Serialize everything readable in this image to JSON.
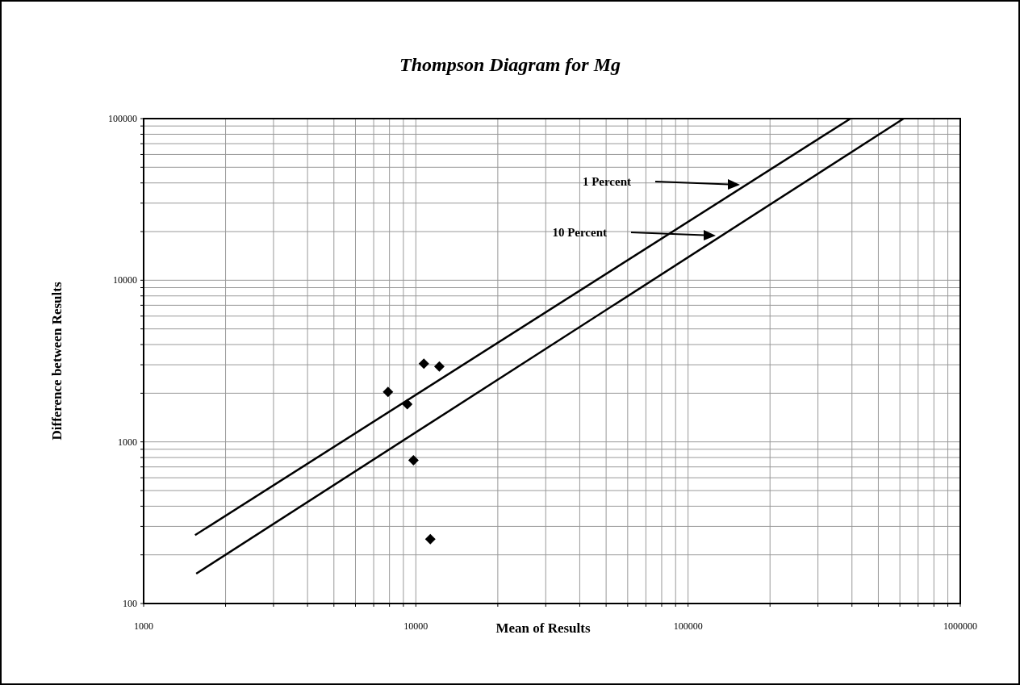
{
  "chart_data": {
    "type": "scatter",
    "title": "Thompson Diagram  for Mg",
    "xlabel": "Mean of  Results",
    "ylabel": "Difference between Results",
    "log": "xy",
    "grid": true,
    "xlim": [
      1000,
      1000000
    ],
    "ylim": [
      100,
      100000
    ],
    "xticks": [
      1000,
      {
        "value": 2000,
        "label": null
      },
      {
        "value": 3000,
        "label": null
      },
      {
        "value": 4000,
        "label": null
      },
      {
        "value": 5000,
        "label": null
      },
      {
        "value": 6000,
        "label": null
      },
      {
        "value": 7000,
        "label": null
      },
      {
        "value": 8000,
        "label": null
      },
      {
        "value": 9000,
        "label": null
      },
      10000,
      {
        "value": 20000,
        "label": null
      },
      {
        "value": 30000,
        "label": null
      },
      {
        "value": 40000,
        "label": null
      },
      {
        "value": 50000,
        "label": null
      },
      {
        "value": 60000,
        "label": null
      },
      {
        "value": 70000,
        "label": null
      },
      {
        "value": 80000,
        "label": null
      },
      {
        "value": 90000,
        "label": null
      },
      100000,
      {
        "value": 200000,
        "label": null
      },
      {
        "value": 300000,
        "label": null
      },
      {
        "value": 400000,
        "label": null
      },
      {
        "value": 500000,
        "label": null
      },
      {
        "value": 600000,
        "label": null
      },
      {
        "value": 700000,
        "label": null
      },
      {
        "value": 800000,
        "label": null
      },
      {
        "value": 900000,
        "label": null
      },
      1000000
    ],
    "yticks": [
      100,
      {
        "value": 200,
        "label": null
      },
      {
        "value": 300,
        "label": null
      },
      {
        "value": 400,
        "label": null
      },
      {
        "value": 500,
        "label": null
      },
      {
        "value": 600,
        "label": null
      },
      {
        "value": 700,
        "label": null
      },
      {
        "value": 800,
        "label": null
      },
      {
        "value": 900,
        "label": null
      },
      1000,
      {
        "value": 2000,
        "label": null
      },
      {
        "value": 3000,
        "label": null
      },
      {
        "value": 4000,
        "label": null
      },
      {
        "value": 5000,
        "label": null
      },
      {
        "value": 6000,
        "label": null
      },
      {
        "value": 7000,
        "label": null
      },
      {
        "value": 8000,
        "label": null
      },
      {
        "value": 9000,
        "label": null
      },
      10000,
      {
        "value": 20000,
        "label": null
      },
      {
        "value": 30000,
        "label": null
      },
      {
        "value": 40000,
        "label": null
      },
      {
        "value": 50000,
        "label": null
      },
      {
        "value": 60000,
        "label": null
      },
      {
        "value": 70000,
        "label": null
      },
      {
        "value": 80000,
        "label": null
      },
      {
        "value": 90000,
        "label": null
      },
      100000
    ],
    "series": [
      {
        "color": "#000000",
        "marker": "diamond",
        "x": [
          10700,
          12200,
          7900,
          9300,
          9800,
          11300
        ],
        "values": [
          3050,
          2930,
          2040,
          1710,
          770,
          250
        ]
      },
      {
        "type": "line",
        "color": "#000000",
        "marker": "none",
        "line_style": "solid",
        "x": [
          1545,
          395000
        ],
        "values": [
          265,
          100000
        ]
      },
      {
        "type": "line",
        "color": "#000000",
        "marker": "none",
        "line_style": "solid",
        "x": [
          1560,
          619000
        ],
        "values": [
          153,
          100000
        ]
      }
    ],
    "annotations": [
      "1 Percent",
      "10 Percent"
    ]
  }
}
